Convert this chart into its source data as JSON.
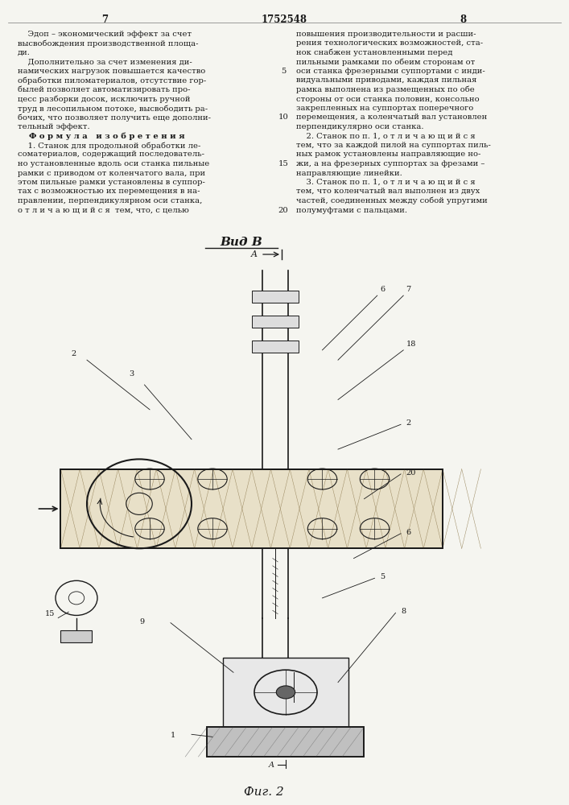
{
  "bg": "#f5f5f0",
  "tc": "#1a1a1a",
  "page_left": "7",
  "page_center": "1752548",
  "page_right": "8",
  "left_col_lines": [
    "    Эдоп – экономический эффект за счет",
    "высвобождения производственной площа-",
    "ди.",
    "    Дополнительно за счет изменения ди-",
    "намических нагрузок повышается качество",
    "обработки пиломатериалов, отсутствие гор-",
    "былей позволяет автоматизировать про-",
    "цесс разборки досок, исключить ручной",
    "труд в лесопильном потоке, высвободить ра-",
    "бочих, что позволяет получить еще дополни-",
    "тельный эффект.",
    "    Ф о р м у л а   и з о б р е т е н и я",
    "    1. Станок для продольной обработки ле-",
    "соматериалов, содержащий последователь-",
    "но установленные вдоль оси станка пильные",
    "рамки с приводом от коленчатого вала, при",
    "этом пильные рамки установлены в суппор-",
    "тах с возможностью их перемещения в на-",
    "правлении, перпендикулярном оси станка,",
    "о т л и ч а ю щ и й с я  тем, что, с целью"
  ],
  "right_col_lines": [
    "повышения производительности и расши-",
    "рения технологических возможностей, ста-",
    "нок снабжен установленными перед",
    "пильными рамками по обеим сторонам от",
    "оси станка фрезерными суппортами с инди-",
    "видуальными приводами, каждая пильная",
    "рамка выполнена из размещенных по обе",
    "стороны от оси станка половин, консольно",
    "закрепленных на суппортах поперечного",
    "перемещения, а коленчатый вал установлен",
    "перпендикулярно оси станка.",
    "    2. Станок по п. 1, о т л и ч а ю щ и й с я",
    "тем, что за каждой пилой на суппортах пиль-",
    "ных рамок установлены направляющие но-",
    "жи, а на фрезерных суппортах за фрезами –",
    "направляющие линейки.",
    "    3. Станок по п. 1, о т л и ч а ю щ и й с я",
    "тем, что коленчатый вал выполнен из двух",
    "частей, соединенных между собой упругими",
    "полумуфтами с пальцами."
  ],
  "line_numbers": {
    "4": "5",
    "9": "10",
    "14": "15",
    "19": "20"
  }
}
